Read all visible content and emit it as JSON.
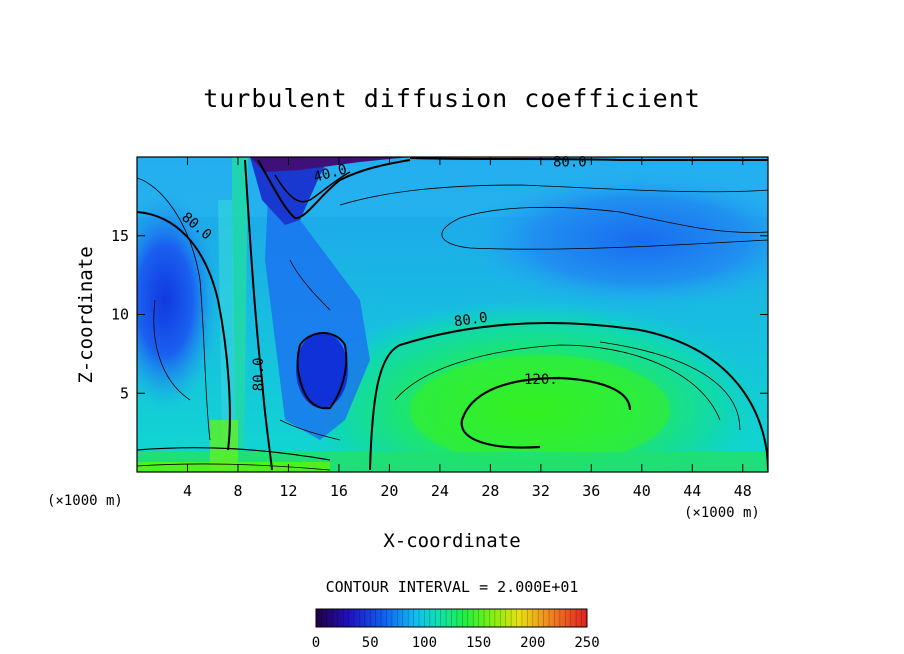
{
  "chart_data": {
    "type": "heatmap",
    "title": "turbulent diffusion coefficient",
    "xlabel": "X-coordinate",
    "ylabel": "Z-coordinate",
    "x_unit_left": "(×1000 m)",
    "x_unit_right": "(×1000 m)",
    "xlim": [
      0,
      50
    ],
    "ylim": [
      0,
      20
    ],
    "x_ticks": [
      4,
      8,
      12,
      16,
      20,
      24,
      28,
      32,
      36,
      40,
      44,
      48
    ],
    "y_ticks": [
      5,
      10,
      15
    ],
    "contour_interval_text": "CONTOUR INTERVAL = 2.000E+01",
    "contour_labels": [
      {
        "text": "40.0",
        "x": 15.4,
        "z": 18.7
      },
      {
        "text": "80.0",
        "x": 34.3,
        "z": 19.4
      },
      {
        "text": "80.0",
        "x": 4.5,
        "z": 15.4
      },
      {
        "text": "80.0",
        "x": 26.5,
        "z": 9.4
      },
      {
        "text": "80.0",
        "x": 10.0,
        "z": 6.2
      },
      {
        "text": "120.",
        "x": 32.0,
        "z": 5.6
      }
    ],
    "colorbar": {
      "min": 0,
      "max": 250,
      "tick_labels": [
        "0",
        "50",
        "100",
        "150",
        "200",
        "250"
      ],
      "tick_values": [
        0,
        50,
        100,
        150,
        200,
        250
      ]
    },
    "field_regions": [
      {
        "desc": "blue low",
        "x": 2,
        "z": 11,
        "value": 60
      },
      {
        "desc": "dark blue minimum",
        "x": 14.5,
        "z": 6.5,
        "value": 35
      },
      {
        "desc": "purple top minimum",
        "x": 11,
        "z": 19.5,
        "value": 10
      },
      {
        "desc": "green maximum",
        "x": 32,
        "z": 4,
        "value": 135
      },
      {
        "desc": "upper-right blue",
        "x": 42,
        "z": 14,
        "value": 70
      }
    ],
    "colors": {
      "purple": "#3a0a8a",
      "dark_blue": "#1030d0",
      "blue": "#1a6cf0",
      "cyan": "#00c8e8",
      "green": "#20f020",
      "yellow": "#c8f000",
      "red": "#e02020"
    }
  }
}
